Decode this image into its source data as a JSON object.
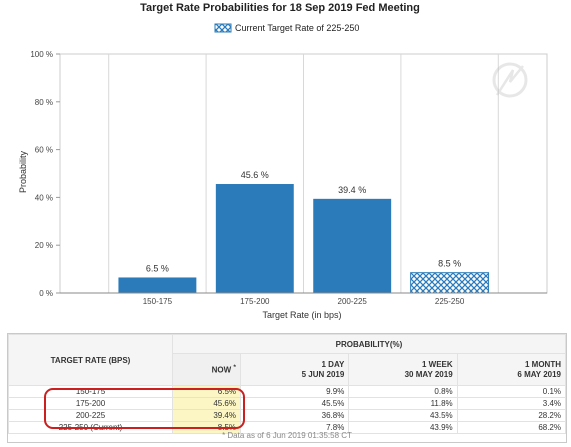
{
  "chart_data": {
    "type": "bar",
    "title": "Target Rate Probabilities for 18 Sep 2019 Fed Meeting",
    "legend": {
      "entry": "Current Target Rate of 225-250",
      "placement": "top-center"
    },
    "xlabel": "Target Rate (in bps)",
    "ylabel": "Probability",
    "ylim": [
      0,
      100
    ],
    "yticks": [
      "0 %",
      "20 %",
      "40 %",
      "60 %",
      "80 %",
      "100 %"
    ],
    "categories": [
      "150-175",
      "175-200",
      "200-225",
      "225-250"
    ],
    "values": [
      6.5,
      45.6,
      39.4,
      8.5
    ],
    "data_labels": [
      "6.5 %",
      "45.6 %",
      "39.4 %",
      "8.5 %"
    ],
    "current_category": "225-250",
    "grid": "vertical",
    "colors": {
      "bar": "#2b7bba",
      "current_pattern": "#2b7bba",
      "grid": "#d8d8d8"
    }
  },
  "table": {
    "rate_header": "TARGET RATE (BPS)",
    "probability_header": "PROBABILITY(%)",
    "columns": [
      {
        "label": "NOW",
        "marker": "*",
        "date": ""
      },
      {
        "label": "1 DAY",
        "date": "5 JUN 2019"
      },
      {
        "label": "1 WEEK",
        "date": "30 MAY 2019"
      },
      {
        "label": "1 MONTH",
        "date": "6 MAY 2019"
      }
    ],
    "rows": [
      {
        "rate": "150-175",
        "values": [
          "6.5%",
          "9.9%",
          "0.8%",
          "0.1%"
        ]
      },
      {
        "rate": "175-200",
        "values": [
          "45.6%",
          "45.5%",
          "11.8%",
          "3.4%"
        ]
      },
      {
        "rate": "200-225",
        "values": [
          "39.4%",
          "36.8%",
          "43.5%",
          "28.2%"
        ]
      },
      {
        "rate": "225-250 (Current)",
        "values": [
          "8.5%",
          "7.8%",
          "43.9%",
          "68.2%"
        ]
      }
    ],
    "footnote": "* Data as of 6 Jun 2019 01:35:58 CT"
  }
}
